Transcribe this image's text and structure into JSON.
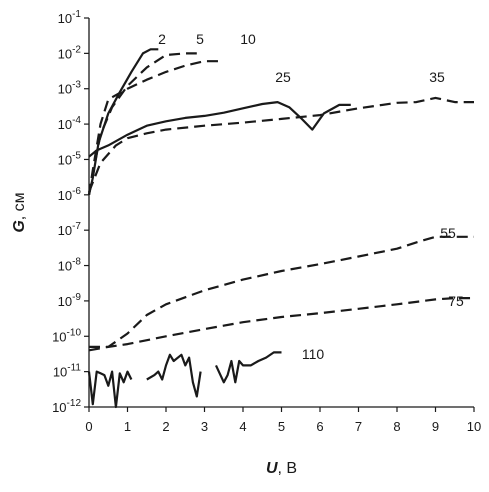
{
  "chart_data": {
    "type": "line",
    "xlabel": "U, В",
    "ylabel": "G, см",
    "xlim": [
      0,
      10
    ],
    "ylim": [
      1e-12,
      0.1
    ],
    "yscale": "log",
    "grid": false,
    "x_ticks": [
      "0",
      "1",
      "2",
      "3",
      "4",
      "5",
      "6",
      "7",
      "8",
      "9",
      "10"
    ],
    "y_ticks": [
      {
        "base": "10",
        "exp": "-1"
      },
      {
        "base": "10",
        "exp": "-2"
      },
      {
        "base": "10",
        "exp": "-3"
      },
      {
        "base": "10",
        "exp": "-4"
      },
      {
        "base": "10",
        "exp": "-5"
      },
      {
        "base": "10",
        "exp": "-6"
      },
      {
        "base": "10",
        "exp": "-7"
      },
      {
        "base": "10",
        "exp": "-8"
      },
      {
        "base": "10",
        "exp": "-9"
      },
      {
        "base": "10",
        "exp": "-10"
      },
      {
        "base": "10",
        "exp": "-11"
      },
      {
        "base": "10",
        "exp": "-12"
      }
    ],
    "series": [
      {
        "name": "2",
        "style": "solid",
        "x": [
          0,
          0.1,
          0.25,
          0.5,
          0.8,
          1.1,
          1.4,
          1.6,
          1.8
        ],
        "y": [
          1e-06,
          3e-06,
          3e-05,
          0.0002,
          0.0008,
          0.003,
          0.01,
          0.013,
          0.013
        ]
      },
      {
        "name": "5",
        "style": "dashed",
        "x": [
          0,
          0.1,
          0.3,
          0.6,
          1.0,
          1.5,
          2.0,
          2.5,
          2.8
        ],
        "y": [
          1e-06,
          4e-06,
          5e-05,
          0.0003,
          0.0012,
          0.004,
          0.009,
          0.01,
          0.01
        ]
      },
      {
        "name": "10",
        "style": "dashed",
        "x": [
          0,
          0.1,
          0.3,
          0.5,
          1.0,
          1.5,
          2.0,
          2.5,
          3.0,
          3.5
        ],
        "y": [
          1e-06,
          5e-06,
          0.0001,
          0.0005,
          0.001,
          0.0018,
          0.003,
          0.0045,
          0.006,
          0.006
        ]
      },
      {
        "name": "25",
        "style": "solid",
        "x": [
          0,
          0.2,
          0.5,
          1.0,
          1.5,
          2.0,
          2.5,
          3.0,
          3.5,
          4.0,
          4.5,
          4.9,
          5.2,
          5.5,
          5.8,
          6.1,
          6.5,
          6.8
        ],
        "y": [
          1.2e-05,
          1.8e-05,
          2.5e-05,
          5e-05,
          9e-05,
          0.00012,
          0.00015,
          0.00017,
          0.00021,
          0.00028,
          0.00037,
          0.00042,
          0.0003,
          0.00015,
          7e-05,
          0.0002,
          0.00035,
          0.00035
        ]
      },
      {
        "name": "35",
        "style": "dashed",
        "x": [
          0,
          0.3,
          0.7,
          1.0,
          1.5,
          2.0,
          3.0,
          4.0,
          5.0,
          6.0,
          7.0,
          8.0,
          8.5,
          9.0,
          9.5,
          10.0
        ],
        "y": [
          1.2e-06,
          8e-06,
          2.5e-05,
          4e-05,
          5.5e-05,
          7e-05,
          9e-05,
          0.00011,
          0.00014,
          0.00018,
          0.00028,
          0.0004,
          0.00042,
          0.00055,
          0.00042,
          0.00042
        ]
      },
      {
        "name": "55",
        "style": "dashed",
        "x": [
          0,
          0.5,
          1.0,
          1.5,
          2.0,
          3.0,
          4.0,
          5.0,
          6.0,
          7.0,
          8.0,
          8.5,
          9.0,
          9.5,
          10.0
        ],
        "y": [
          5e-11,
          5e-11,
          1.2e-10,
          4e-10,
          8e-10,
          2e-09,
          4e-09,
          7e-09,
          1.1e-08,
          1.8e-08,
          3e-08,
          4.5e-08,
          6.5e-08,
          6.5e-08,
          6.5e-08
        ]
      },
      {
        "name": "75",
        "style": "dashed",
        "x": [
          0,
          0.5,
          1.0,
          2.0,
          3.0,
          4.0,
          5.0,
          6.0,
          7.0,
          8.0,
          9.0,
          9.5,
          10.0
        ],
        "y": [
          4e-11,
          5e-11,
          6e-11,
          1e-10,
          1.6e-10,
          2.5e-10,
          3.5e-10,
          4.5e-10,
          6e-10,
          8e-10,
          1.1e-09,
          1.2e-09,
          1.2e-09
        ]
      },
      {
        "name": "110",
        "style": "solid",
        "x": [
          0,
          0.1,
          0.2,
          0.3,
          0.4,
          0.5,
          0.6,
          0.7,
          0.8,
          0.9,
          1.0,
          1.1,
          1.5,
          1.7,
          1.8,
          1.9,
          2.0,
          2.1,
          2.2,
          2.4,
          2.5,
          2.6,
          2.7,
          2.8,
          2.9,
          3.3,
          3.5,
          3.6,
          3.7,
          3.8,
          3.9,
          4.0,
          4.2,
          4.4,
          4.6,
          4.8,
          5.0
        ],
        "y": [
          1e-11,
          1.2e-12,
          1e-11,
          9e-12,
          8e-12,
          4e-12,
          1e-11,
          1e-12,
          9e-12,
          5e-12,
          1e-11,
          6e-12,
          6e-12,
          8e-12,
          1e-11,
          6e-12,
          1.5e-11,
          3e-11,
          2e-11,
          3e-11,
          1.5e-11,
          2.5e-11,
          5e-12,
          2e-12,
          1e-11,
          1.5e-11,
          5e-12,
          8e-12,
          2e-11,
          5e-12,
          2e-11,
          1.5e-11,
          1.5e-11,
          2e-11,
          2.5e-11,
          3.5e-11,
          3.5e-11
        ],
        "breaks_after": [
          1.1,
          2.9
        ]
      }
    ]
  }
}
